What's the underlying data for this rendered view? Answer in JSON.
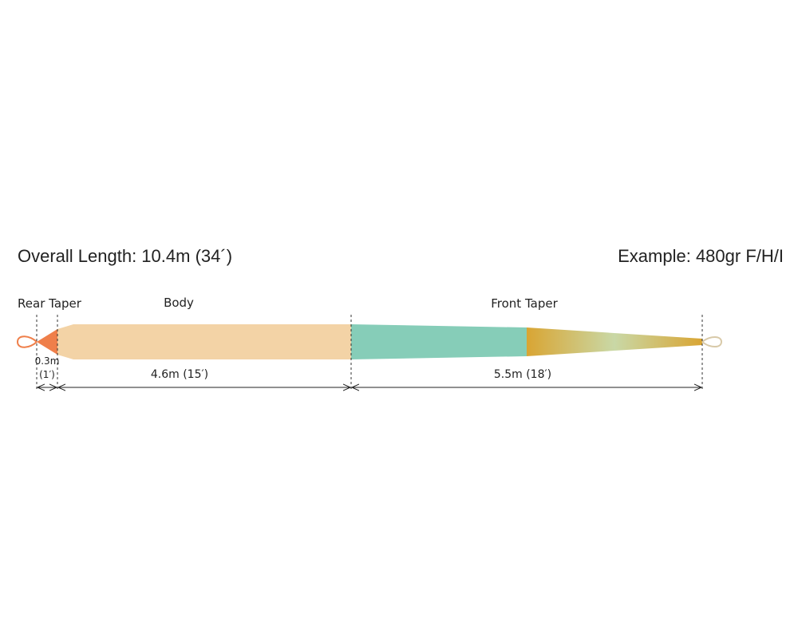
{
  "header": {
    "overall_length": "Overall Length: 10.4m (34´)",
    "example": "Example:  480gr F/H/I"
  },
  "sections": {
    "rear_taper": {
      "label": "Rear Taper",
      "length_m": "0.3m",
      "length_ft": "(1′)"
    },
    "body": {
      "label": "Body",
      "length": "4.6m (15′)"
    },
    "front_taper": {
      "label": "Front Taper",
      "length": "5.5m (18′)"
    }
  },
  "colors": {
    "rear_taper": "#ef7f4a",
    "body": "#f3d3a6",
    "front_taper_teal": "#86cdb8",
    "front_taper_gold": "#d9a533",
    "front_taper_sage": "#c9d8a6",
    "loop": "#d8c9a8",
    "rear_loop": "#ef7f4a"
  }
}
